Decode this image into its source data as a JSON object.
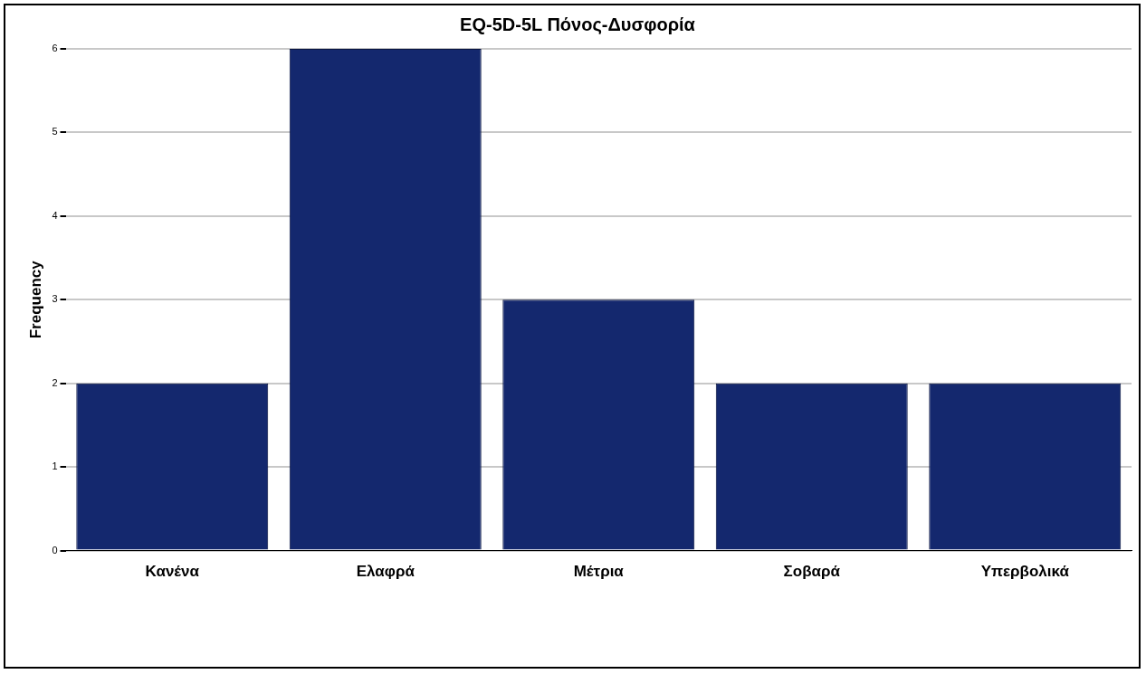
{
  "chart_data": {
    "type": "bar",
    "title": "EQ-5D-5L Πόνος-Δυσφορία",
    "ylabel": "Frequency",
    "categories": [
      "Κανένα",
      "Ελαφρά",
      "Μέτρια",
      "Σοβαρά",
      "Υπερβολικά"
    ],
    "values": [
      2,
      6,
      3,
      2,
      2
    ],
    "color": "#14286e",
    "ylim": [
      0,
      6
    ],
    "yticks": [
      0,
      1,
      2,
      3,
      4,
      5,
      6
    ],
    "grid": "y",
    "legend": false
  }
}
